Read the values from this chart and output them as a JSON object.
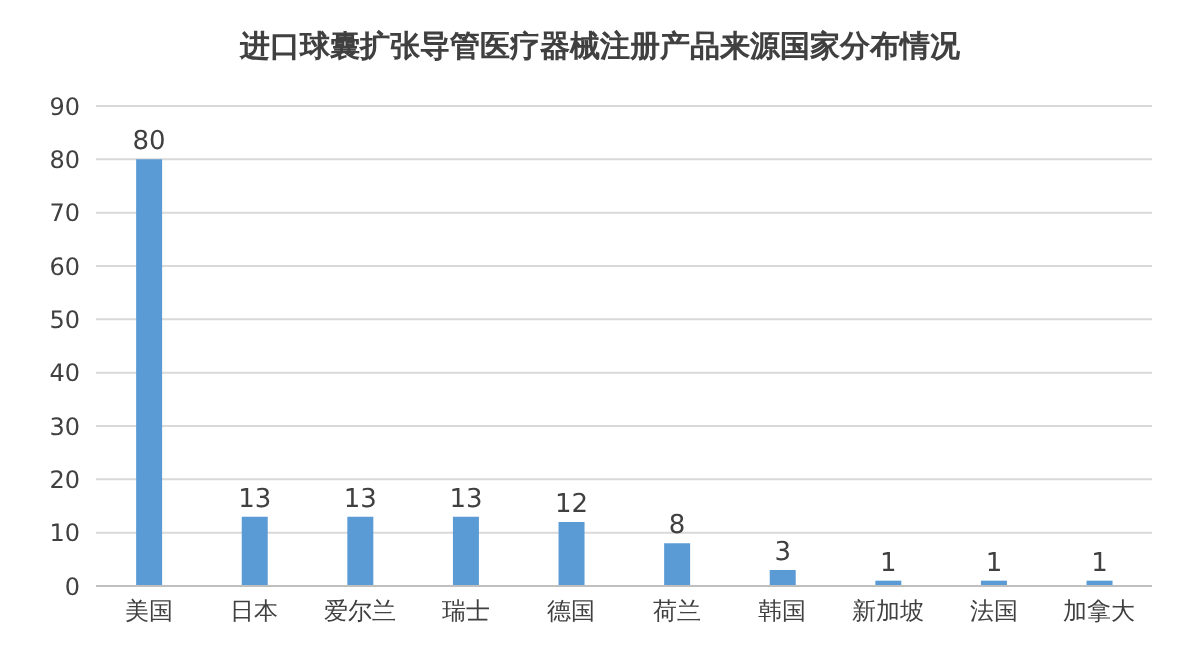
{
  "chart_data": {
    "type": "bar",
    "title": "进口球囊扩张导管医疗器械注册产品来源国家分布情况",
    "categories": [
      "美国",
      "日本",
      "爱尔兰",
      "瑞士",
      "德国",
      "荷兰",
      "韩国",
      "新加坡",
      "法国",
      "加拿大"
    ],
    "values": [
      80,
      13,
      13,
      13,
      12,
      8,
      3,
      1,
      1,
      1
    ],
    "color": "#5b9bd5",
    "ylim": [
      0,
      90
    ],
    "yticks": [
      0,
      10,
      20,
      30,
      40,
      50,
      60,
      70,
      80,
      90
    ],
    "grid": "y",
    "data_labels": true
  }
}
